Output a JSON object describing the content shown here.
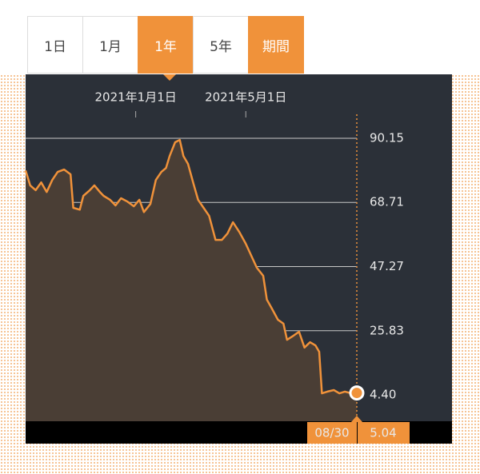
{
  "chart_data": {
    "type": "line",
    "range_tabs": [
      "1日",
      "1月",
      "1年",
      "5年",
      "期間"
    ],
    "active_tab": "1年",
    "x": [
      "2020-09-03",
      "2020-09-08",
      "2020-09-14",
      "2020-09-20",
      "2020-09-26",
      "2020-10-02",
      "2020-10-08",
      "2020-10-15",
      "2020-10-22",
      "2020-10-25",
      "2020-11-01",
      "2020-11-05",
      "2020-11-12",
      "2020-11-17",
      "2020-11-23",
      "2020-11-27",
      "2020-12-04",
      "2020-12-10",
      "2020-12-16",
      "2020-12-23",
      "2020-12-30",
      "2021-01-05",
      "2021-01-10",
      "2021-01-17",
      "2021-01-23",
      "2021-01-29",
      "2021-02-03",
      "2021-02-07",
      "2021-02-13",
      "2021-02-18",
      "2021-02-22",
      "2021-02-27",
      "2021-03-05",
      "2021-03-10",
      "2021-03-16",
      "2021-03-22",
      "2021-03-29",
      "2021-04-05",
      "2021-04-11",
      "2021-04-17",
      "2021-04-24",
      "2021-05-01",
      "2021-05-07",
      "2021-05-13",
      "2021-05-20",
      "2021-05-24",
      "2021-05-29",
      "2021-06-05",
      "2021-06-11",
      "2021-06-15",
      "2021-06-22",
      "2021-06-28",
      "2021-07-04",
      "2021-07-10",
      "2021-07-16",
      "2021-07-20",
      "2021-07-23",
      "2021-07-29",
      "2021-08-05",
      "2021-08-11",
      "2021-08-17",
      "2021-08-24",
      "2021-08-30"
    ],
    "series": [
      {
        "color": "#f0923a",
        "values": [
          79.4,
          74.4,
          72.8,
          75.4,
          72.2,
          76.2,
          78.9,
          79.7,
          78.1,
          66.9,
          66.3,
          70.9,
          72.8,
          74.4,
          72.2,
          70.9,
          69.6,
          67.7,
          70.1,
          69.0,
          67.4,
          69.6,
          65.5,
          68.2,
          76.2,
          78.9,
          80.2,
          84.2,
          88.8,
          89.6,
          84.2,
          81.6,
          74.9,
          69.6,
          66.9,
          64.2,
          56.2,
          56.2,
          58.3,
          62.1,
          58.8,
          54.9,
          50.9,
          46.9,
          44.2,
          36.2,
          33.5,
          29.5,
          28.2,
          22.8,
          24.2,
          25.5,
          20.2,
          22.0,
          20.9,
          18.8,
          4.9,
          5.5,
          6.0,
          4.9,
          5.5,
          4.9,
          5.04
        ]
      }
    ],
    "xlim": [
      "2020-09-03",
      "2021-08-30"
    ],
    "xticks": [
      {
        "value": "2021-01-01",
        "label": "2021年1月1日"
      },
      {
        "value": "2021-05-01",
        "label": "2021年5月1日"
      }
    ],
    "ylim": [
      -4.42,
      98.16
    ],
    "yticks": [
      90.15,
      68.71,
      47.27,
      25.83,
      {
        "value": 4.4,
        "label": "4.40"
      }
    ],
    "grid": true,
    "cursor_label": "08/30"
  }
}
